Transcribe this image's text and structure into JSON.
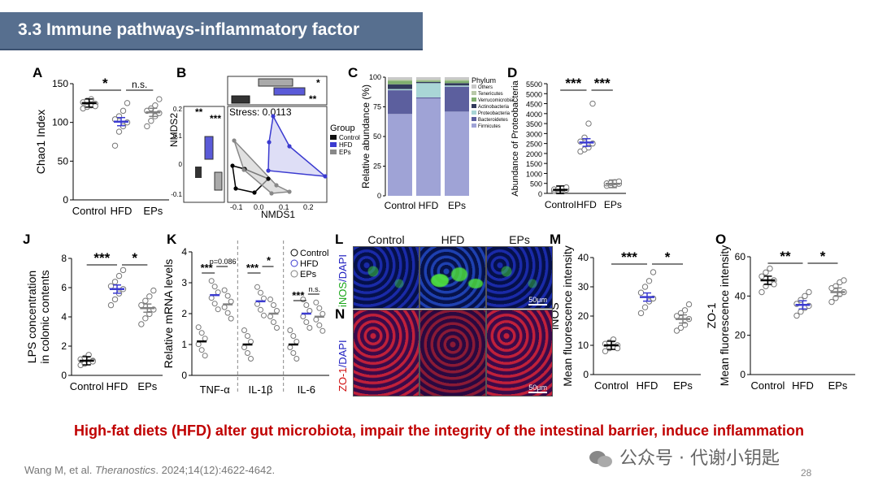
{
  "slide": {
    "title": "3.3 Immune pathways-inflammatory factor",
    "conclusion": "High-fat diets (HFD) alter gut microbiota, impair the integrity of the intestinal barrier, induce inflammation",
    "citation_prefix": "Wang M, et al. ",
    "citation_journal": "Theranostics",
    "citation_suffix": ". 2024;14(12):4622-4642.",
    "watermark": "公众号 · 代谢小钥匙",
    "page_number": "28",
    "colors": {
      "control": "#000000",
      "hfd": "#3b3bd0",
      "eps": "#808080",
      "title_bg": "#576f8f",
      "conclusion": "#c00000"
    }
  },
  "panels": {
    "A": {
      "label": "A",
      "ylabel": "Chao1 Index",
      "yticks": [
        "0",
        "50",
        "100",
        "150"
      ],
      "categories": [
        "Control",
        "HFD",
        "EPs"
      ],
      "sig1": "*",
      "sig2": "n.s."
    },
    "B": {
      "label": "B",
      "xlabel": "NMDS1",
      "ylabel": "NMDS2",
      "stress": "Stress: 0.0113",
      "legend_title": "Group",
      "legend": [
        "Control",
        "HFD",
        "EPs"
      ],
      "xticks": [
        "-0.1",
        "0.0",
        "0.1",
        "0.2"
      ],
      "yticks": [
        "0.2",
        "0.1",
        "0",
        "-0.1"
      ],
      "sig": [
        "**",
        "***",
        "*",
        "**"
      ]
    },
    "C": {
      "label": "C",
      "ylabel": "Relative abundance (%)",
      "yticks": [
        "100",
        "75",
        "50",
        "25",
        "0"
      ],
      "categories": [
        "Control",
        "HFD",
        "EPs"
      ],
      "legend_title": "Phylum",
      "legend": [
        "Others",
        "Tenericutes",
        "Verrucomicrobia",
        "Actinobacteria",
        "Proteobacteria",
        "Bacteroidetes",
        "Firmicutes"
      ]
    },
    "D": {
      "label": "D",
      "ylabel": "Abundance of Proteobacteria",
      "yticks": [
        "0",
        "500",
        "1000",
        "1500",
        "2000",
        "2500",
        "3000",
        "3500",
        "4000",
        "4500",
        "5000",
        "5500"
      ],
      "categories": [
        "Control",
        "HFD",
        "EPs"
      ],
      "sig1": "***",
      "sig2": "***"
    },
    "J": {
      "label": "J",
      "ylabel1": "LPS concentration",
      "ylabel2": "in colonic contents",
      "yticks": [
        "0",
        "2",
        "4",
        "6",
        "8"
      ],
      "categories": [
        "Control",
        "HFD",
        "EPs"
      ],
      "sig1": "***",
      "sig2": "*"
    },
    "K": {
      "label": "K",
      "ylabel": "Relative mRNA levels",
      "yticks": [
        "0",
        "1",
        "2",
        "3",
        "4"
      ],
      "categories": [
        "TNF-α",
        "IL-1β",
        "IL-6"
      ],
      "legend": [
        "Control",
        "HFD",
        "EPs"
      ],
      "sig": [
        "***",
        "p=0.086",
        "***",
        "*",
        "***",
        "n.s."
      ]
    },
    "L": {
      "label": "L",
      "stain": "iNOS/DAPI",
      "stain_a": "iNOS",
      "stain_b": "/DAPI",
      "columns": [
        "Control",
        "HFD",
        "EPs"
      ],
      "scale": "50μm"
    },
    "N": {
      "label": "N",
      "stain": "ZO-1/DAPI",
      "stain_a": "ZO-1",
      "stain_b": "/DAPI",
      "scale": "50μm"
    },
    "M": {
      "label": "M",
      "ylabel1": "iNOS",
      "ylabel2": "Mean fluorescence intensity",
      "yticks": [
        "0",
        "10",
        "20",
        "30",
        "40"
      ],
      "categories": [
        "Control",
        "HFD",
        "EPs"
      ],
      "sig1": "***",
      "sig2": "*"
    },
    "O": {
      "label": "O",
      "ylabel1": "ZO-1",
      "ylabel2": "Mean fluorescence intensity",
      "yticks": [
        "0",
        "20",
        "40",
        "60"
      ],
      "categories": [
        "Control",
        "HFD",
        "EPs"
      ],
      "sig1": "**",
      "sig2": "*"
    }
  },
  "chart_data": [
    {
      "panel": "A",
      "type": "scatter",
      "categories": [
        "Control",
        "HFD",
        "EPs"
      ],
      "ylim": [
        0,
        150
      ],
      "series": [
        {
          "name": "Control",
          "mean": 125,
          "points": [
            118,
            120,
            122,
            124,
            126,
            128,
            130,
            121
          ]
        },
        {
          "name": "HFD",
          "mean": 101,
          "points": [
            70,
            88,
            95,
            100,
            104,
            108,
            115,
            125
          ]
        },
        {
          "name": "EPs",
          "mean": 113,
          "points": [
            95,
            102,
            108,
            112,
            115,
            118,
            122,
            130
          ]
        }
      ]
    },
    {
      "panel": "C",
      "type": "bar",
      "categories": [
        "Control",
        "HFD",
        "EPs"
      ],
      "ylim": [
        0,
        100
      ],
      "series": [
        {
          "name": "Firmicutes",
          "values": [
            69,
            82,
            71
          ]
        },
        {
          "name": "Bacteroidetes",
          "values": [
            20,
            1,
            21
          ]
        },
        {
          "name": "Proteobacteria",
          "values": [
            1,
            12,
            1
          ]
        },
        {
          "name": "Actinobacteria",
          "values": [
            4,
            1,
            2
          ]
        },
        {
          "name": "Verrucomicrobia",
          "values": [
            3,
            1,
            2
          ]
        },
        {
          "name": "Tenericutes",
          "values": [
            1,
            1,
            1
          ]
        },
        {
          "name": "Others",
          "values": [
            2,
            2,
            2
          ]
        }
      ]
    },
    {
      "panel": "D",
      "type": "scatter",
      "categories": [
        "Control",
        "HFD",
        "EPs"
      ],
      "ylim": [
        0,
        5500
      ],
      "series": [
        {
          "name": "Control",
          "mean": 180,
          "points": [
            120,
            150,
            170,
            190,
            200,
            220,
            240,
            300
          ]
        },
        {
          "name": "HFD",
          "mean": 2550,
          "points": [
            2100,
            2200,
            2300,
            2500,
            2600,
            2800,
            3500,
            4500
          ]
        },
        {
          "name": "EPs",
          "mean": 480,
          "points": [
            380,
            420,
            450,
            480,
            500,
            520,
            560,
            600
          ]
        }
      ]
    },
    {
      "panel": "J",
      "type": "scatter",
      "categories": [
        "Control",
        "HFD",
        "EPs"
      ],
      "ylim": [
        0,
        8
      ],
      "series": [
        {
          "name": "Control",
          "mean": 1.0,
          "points": [
            0.7,
            0.8,
            0.9,
            1.0,
            1.1,
            1.2,
            1.4,
            0.95
          ]
        },
        {
          "name": "HFD",
          "mean": 5.9,
          "points": [
            4.8,
            5.2,
            5.6,
            5.9,
            6.1,
            6.4,
            6.8,
            7.2
          ]
        },
        {
          "name": "EPs",
          "mean": 4.6,
          "points": [
            3.5,
            3.9,
            4.2,
            4.5,
            4.8,
            5.1,
            5.4,
            5.8
          ]
        }
      ]
    },
    {
      "panel": "K",
      "type": "scatter",
      "categories": [
        "TNF-α",
        "IL-1β",
        "IL-6"
      ],
      "ylim": [
        0,
        4
      ],
      "series": [
        {
          "name": "Control",
          "means": [
            1.1,
            1.0,
            1.0
          ]
        },
        {
          "name": "HFD",
          "means": [
            2.6,
            2.4,
            2.0
          ]
        },
        {
          "name": "EPs",
          "means": [
            2.3,
            2.0,
            1.9
          ]
        }
      ]
    },
    {
      "panel": "M",
      "type": "scatter",
      "categories": [
        "Control",
        "HFD",
        "EPs"
      ],
      "ylim": [
        0,
        40
      ],
      "series": [
        {
          "name": "Control",
          "mean": 10,
          "points": [
            8,
            9,
            9.5,
            10,
            10.5,
            11,
            12,
            9
          ]
        },
        {
          "name": "HFD",
          "mean": 26.5,
          "points": [
            21,
            23,
            25,
            26,
            28,
            30,
            32,
            35
          ]
        },
        {
          "name": "EPs",
          "mean": 19,
          "points": [
            15,
            16,
            17,
            19,
            20,
            21,
            22,
            24
          ]
        }
      ]
    },
    {
      "panel": "O",
      "type": "scatter",
      "categories": [
        "Control",
        "HFD",
        "EPs"
      ],
      "ylim": [
        0,
        60
      ],
      "series": [
        {
          "name": "Control",
          "mean": 48,
          "points": [
            42,
            45,
            47,
            48,
            50,
            52,
            54,
            46
          ]
        },
        {
          "name": "HFD",
          "mean": 35.5,
          "points": [
            30,
            32,
            34,
            35,
            36,
            38,
            40,
            42
          ]
        },
        {
          "name": "EPs",
          "mean": 42,
          "points": [
            37,
            39,
            41,
            42,
            44,
            45,
            47,
            48
          ]
        }
      ]
    }
  ]
}
